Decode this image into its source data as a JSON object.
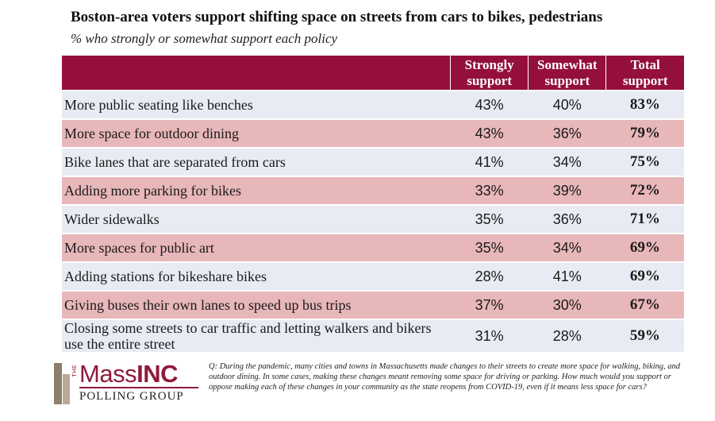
{
  "title": "Boston-area voters support shifting space on streets from cars to bikes, pedestrians",
  "subtitle": "% who strongly or somewhat support each policy",
  "chart_data": {
    "type": "table",
    "columns": [
      "",
      "Strongly support",
      "Somewhat support",
      "Total support"
    ],
    "rows": [
      {
        "label": "More public seating like benches",
        "strongly": "43%",
        "somewhat": "40%",
        "total": "83%"
      },
      {
        "label": "More space for outdoor dining",
        "strongly": "43%",
        "somewhat": "36%",
        "total": "79%"
      },
      {
        "label": "Bike lanes that are separated from cars",
        "strongly": "41%",
        "somewhat": "34%",
        "total": "75%"
      },
      {
        "label": "Adding more parking for bikes",
        "strongly": "33%",
        "somewhat": "39%",
        "total": "72%"
      },
      {
        "label": "Wider sidewalks",
        "strongly": "35%",
        "somewhat": "36%",
        "total": "71%"
      },
      {
        "label": "More spaces for public art",
        "strongly": "35%",
        "somewhat": "34%",
        "total": "69%"
      },
      {
        "label": "Adding stations for bikeshare bikes",
        "strongly": "28%",
        "somewhat": "41%",
        "total": "69%"
      },
      {
        "label": "Giving buses their own lanes to speed up bus trips",
        "strongly": "37%",
        "somewhat": "30%",
        "total": "67%"
      },
      {
        "label": "Closing some streets to car traffic and letting walkers and bikers use the entire street",
        "strongly": "31%",
        "somewhat": "28%",
        "total": "59%"
      }
    ]
  },
  "colors": {
    "header_bg": "#940f3d",
    "row_light": "#e8ebf3",
    "row_pink": "#e8b7ba"
  },
  "logo": {
    "the": "THE",
    "mass": "Mass",
    "inc": "INC",
    "sub": "POLLING GROUP"
  },
  "question": "Q: During the pandemic, many cities and towns in Massachusetts made changes to their streets to create more space for walking, biking, and outdoor dining. In some cases, making these changes meant removing some space for driving or parking. How much would you support or oppose making each of these changes in your community as the state reopens from COVID-19, even if it means less space for cars?"
}
